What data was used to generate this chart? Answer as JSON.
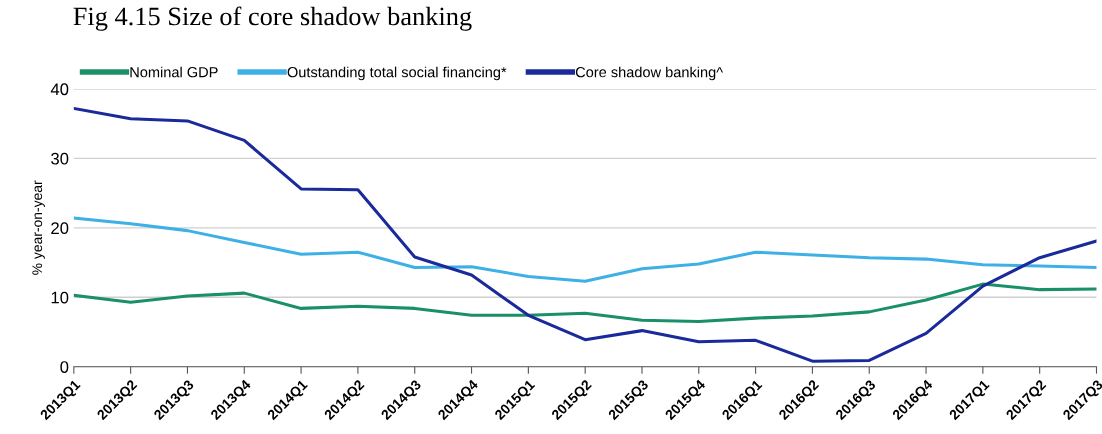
{
  "chart_data": {
    "type": "line",
    "title": "Fig 4.15 Size of core shadow banking",
    "ylabel": "% year-on-year",
    "categories": [
      "2013Q1",
      "2013Q2",
      "2013Q3",
      "2013Q4",
      "2014Q1",
      "2014Q2",
      "2014Q3",
      "2014Q4",
      "2015Q1",
      "2015Q2",
      "2015Q3",
      "2015Q4",
      "2016Q1",
      "2016Q2",
      "2016Q3",
      "2016Q4",
      "2017Q1",
      "2017Q2",
      "2017Q3"
    ],
    "series": [
      {
        "name": "Nominal GDP",
        "color": "#1a9068",
        "values": [
          10.3,
          9.3,
          10.2,
          10.6,
          8.4,
          8.7,
          8.4,
          7.4,
          7.4,
          7.7,
          6.7,
          6.5,
          7.0,
          7.3,
          7.9,
          9.6,
          11.9,
          11.1,
          11.2
        ]
      },
      {
        "name": "Outstanding total social financing*",
        "color": "#3fb0e6",
        "values": [
          21.4,
          20.6,
          19.6,
          17.9,
          16.2,
          16.5,
          14.3,
          14.4,
          13.0,
          12.3,
          14.1,
          14.8,
          16.5,
          16.1,
          15.7,
          15.5,
          14.7,
          14.5,
          14.3
        ]
      },
      {
        "name": "Core shadow banking^",
        "color": "#1a2a9a",
        "values": [
          37.2,
          35.7,
          35.4,
          32.6,
          25.6,
          25.5,
          15.8,
          13.2,
          7.4,
          3.9,
          5.2,
          3.6,
          3.8,
          0.8,
          0.9,
          4.8,
          11.6,
          15.7,
          18.1
        ]
      }
    ],
    "ylim": [
      0,
      40
    ],
    "yticks": [
      0,
      10,
      20,
      30,
      40
    ],
    "grid": "y",
    "legend": "top left",
    "marker": "none",
    "line_style": "solid"
  }
}
